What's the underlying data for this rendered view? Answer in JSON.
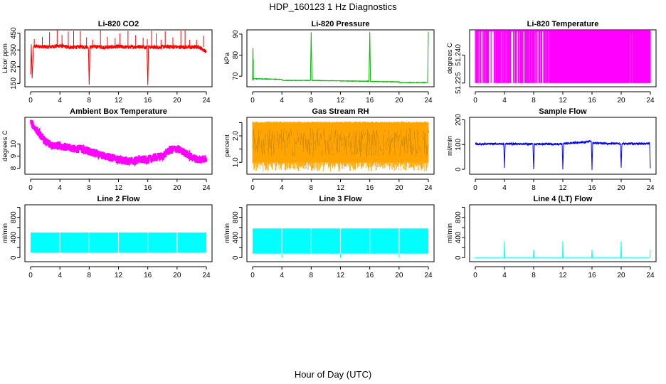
{
  "figure": {
    "title": "HDP_160123  1 Hz Diagnostics",
    "xlabel": "Hour of Day (UTC)"
  },
  "chart_data": [
    {
      "type": "line",
      "title": "Li-820 CO2",
      "ylabel": "Licor ppm",
      "color": "#ff0000",
      "xlim": [
        0,
        24
      ],
      "ylim": [
        130,
        470
      ],
      "x_ticks": [
        0,
        4,
        8,
        12,
        16,
        20,
        24
      ],
      "y_ticks": [
        150,
        250,
        350,
        450
      ],
      "x": [
        0,
        0.1,
        0.2,
        0.4,
        1,
        2,
        3,
        4,
        5,
        6,
        7,
        7.9,
        8,
        8.1,
        9,
        10,
        11,
        12,
        13,
        14,
        15,
        15.9,
        16,
        16.1,
        17,
        18,
        19,
        20,
        21,
        22,
        23,
        24
      ],
      "values": [
        200,
        380,
        175,
        370,
        372,
        368,
        370,
        375,
        368,
        366,
        370,
        368,
        135,
        368,
        370,
        366,
        368,
        370,
        367,
        368,
        370,
        368,
        130,
        368,
        366,
        368,
        370,
        367,
        368,
        366,
        368,
        340
      ]
    },
    {
      "type": "line",
      "title": "Li-820 Pressure",
      "ylabel": "kPa",
      "color": "#00bb00",
      "xlim": [
        0,
        24
      ],
      "ylim": [
        65,
        92
      ],
      "x_ticks": [
        0,
        4,
        8,
        12,
        16,
        20,
        24
      ],
      "y_ticks": [
        70,
        80,
        90
      ],
      "x": [
        0,
        0.05,
        0.1,
        0.3,
        4,
        4.1,
        7.9,
        8,
        8.1,
        12,
        15.9,
        16,
        16.1,
        20,
        20.1,
        23.9,
        24
      ],
      "values": [
        68,
        87,
        69,
        68.8,
        68.5,
        68,
        68,
        91,
        68,
        67.8,
        67.6,
        91,
        67.5,
        67.3,
        67,
        67,
        91
      ]
    },
    {
      "type": "line",
      "title": "Li-820 Temperature",
      "ylabel": "degrees C",
      "color": "#ff00ff",
      "xlim": [
        0,
        24
      ],
      "ylim": [
        51.223,
        51.2535
      ],
      "x_ticks": [
        0,
        4,
        8,
        12,
        16,
        20,
        24
      ],
      "y_ticks": [
        51.225,
        51.24
      ],
      "y_ticks_shown": [
        "51.225",
        "51.240"
      ],
      "values_note": "",
      "x": [
        0,
        24
      ],
      "values": [
        51.225,
        51.253
      ]
    },
    {
      "type": "line",
      "title": "Ambient Box Temperature",
      "ylabel": "degrees C",
      "color": "#ff00ff",
      "xlim": [
        0,
        24
      ],
      "ylim": [
        7.5,
        12.2
      ],
      "x_ticks": [
        0,
        4,
        8,
        12,
        16,
        20,
        24
      ],
      "y_ticks": [
        8,
        9,
        10
      ],
      "x": [
        0,
        1,
        2,
        3,
        4,
        5,
        6,
        7,
        8,
        9,
        10,
        11,
        12,
        13,
        14,
        15,
        16,
        17,
        18,
        19,
        20,
        21,
        22,
        23,
        24
      ],
      "values": [
        11.8,
        11.0,
        10.2,
        9.8,
        9.9,
        9.7,
        9.6,
        9.6,
        9.4,
        9.2,
        9.0,
        8.9,
        8.7,
        8.6,
        8.6,
        8.7,
        8.7,
        8.9,
        9.0,
        9.5,
        9.6,
        9.3,
        8.9,
        8.7,
        8.8
      ]
    },
    {
      "type": "line",
      "title": "Gas Stream RH",
      "ylabel": "percent",
      "color": "#ffa500",
      "xlim": [
        0,
        24
      ],
      "ylim": [
        0.55,
        2.7
      ],
      "x_ticks": [
        0,
        4,
        8,
        12,
        16,
        20,
        24
      ],
      "y_ticks": [
        1.0,
        1.5,
        2.0,
        2.5
      ],
      "y_ticks_shown": [
        "1.0",
        "2.0"
      ],
      "x": [
        0,
        24
      ],
      "values": [
        2.0,
        2.0
      ],
      "band": [
        1.0,
        2.5
      ]
    },
    {
      "type": "line",
      "title": "Sample Flow",
      "ylabel": "ml/min",
      "color": "#0000ff",
      "xlim": [
        0,
        24
      ],
      "ylim": [
        -20,
        210
      ],
      "x_ticks": [
        0,
        4,
        8,
        12,
        16,
        20,
        24
      ],
      "y_ticks": [
        0,
        100,
        200
      ],
      "x": [
        0,
        3.9,
        4,
        4.1,
        7.9,
        8,
        8.1,
        11.9,
        12,
        12.1,
        15,
        15.9,
        16,
        16.1,
        19.9,
        20,
        20.1,
        23.9,
        24
      ],
      "values": [
        102,
        103,
        5,
        103,
        102,
        0,
        102,
        102,
        0,
        104,
        110,
        115,
        0,
        106,
        103,
        5,
        103,
        104,
        0
      ]
    },
    {
      "type": "line",
      "title": "Line 2 Flow",
      "ylabel": "ml/min",
      "color": "#00ffff",
      "xlim": [
        0,
        24
      ],
      "ylim": [
        -80,
        1050
      ],
      "x_ticks": [
        0,
        4,
        8,
        12,
        16,
        20,
        24
      ],
      "y_ticks": [
        0,
        200,
        400,
        600,
        800,
        1000
      ],
      "y_ticks_shown": [
        "0",
        "400",
        "800"
      ],
      "x": [
        0,
        24
      ],
      "values": [
        500,
        490
      ],
      "band": [
        100,
        500
      ]
    },
    {
      "type": "line",
      "title": "Line 3 Flow",
      "ylabel": "ml/min",
      "color": "#00ffff",
      "xlim": [
        0,
        24
      ],
      "ylim": [
        -80,
        1050
      ],
      "x_ticks": [
        0,
        4,
        8,
        12,
        16,
        20,
        24
      ],
      "y_ticks": [
        0,
        200,
        400,
        600,
        800,
        1000
      ],
      "y_ticks_shown": [
        "0",
        "400",
        "800"
      ],
      "x": [
        0,
        24
      ],
      "values": [
        580,
        560
      ],
      "band": [
        80,
        580
      ]
    },
    {
      "type": "line",
      "title": "Line 4 (LT) Flow",
      "ylabel": "ml/min",
      "color": "#00ffff",
      "xlim": [
        0,
        24
      ],
      "ylim": [
        -80,
        1050
      ],
      "x_ticks": [
        0,
        4,
        8,
        12,
        16,
        20,
        24
      ],
      "y_ticks": [
        0,
        200,
        400,
        600,
        800,
        1000
      ],
      "y_ticks_shown": [
        "0",
        "400",
        "800"
      ],
      "x": [
        0,
        3.95,
        4,
        4.05,
        7.95,
        8,
        8.05,
        11.95,
        12,
        12.05,
        15.95,
        16,
        16.05,
        19.95,
        20,
        20.05,
        23.95,
        24
      ],
      "values": [
        0,
        0,
        330,
        0,
        0,
        160,
        0,
        0,
        330,
        0,
        0,
        160,
        0,
        0,
        330,
        0,
        0,
        160
      ]
    }
  ]
}
